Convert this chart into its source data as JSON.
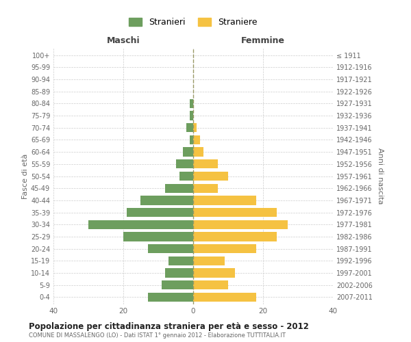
{
  "age_groups": [
    "0-4",
    "5-9",
    "10-14",
    "15-19",
    "20-24",
    "25-29",
    "30-34",
    "35-39",
    "40-44",
    "45-49",
    "50-54",
    "55-59",
    "60-64",
    "65-69",
    "70-74",
    "75-79",
    "80-84",
    "85-89",
    "90-94",
    "95-99",
    "100+"
  ],
  "birth_years": [
    "2007-2011",
    "2002-2006",
    "1997-2001",
    "1992-1996",
    "1987-1991",
    "1982-1986",
    "1977-1981",
    "1972-1976",
    "1967-1971",
    "1962-1966",
    "1957-1961",
    "1952-1956",
    "1947-1951",
    "1942-1946",
    "1937-1941",
    "1932-1936",
    "1927-1931",
    "1922-1926",
    "1917-1921",
    "1912-1916",
    "≤ 1911"
  ],
  "maschi": [
    13,
    9,
    8,
    7,
    13,
    20,
    30,
    19,
    15,
    8,
    4,
    5,
    3,
    1,
    2,
    1,
    1,
    0,
    0,
    0,
    0
  ],
  "femmine": [
    18,
    10,
    12,
    9,
    18,
    24,
    27,
    24,
    18,
    7,
    10,
    7,
    3,
    2,
    1,
    0,
    0,
    0,
    0,
    0,
    0
  ],
  "maschi_color": "#6d9e5e",
  "femmine_color": "#f5c242",
  "background_color": "#ffffff",
  "grid_color": "#cccccc",
  "title": "Popolazione per cittadinanza straniera per età e sesso - 2012",
  "subtitle": "COMUNE DI MASSALENGO (LO) - Dati ISTAT 1° gennaio 2012 - Elaborazione TUTTITALIA.IT",
  "xlabel_left": "Maschi",
  "xlabel_right": "Femmine",
  "ylabel_left": "Fasce di età",
  "ylabel_right": "Anni di nascita",
  "legend_maschi": "Stranieri",
  "legend_femmine": "Straniere",
  "xlim": 40,
  "bar_height": 0.75,
  "center_line_color": "#999966"
}
